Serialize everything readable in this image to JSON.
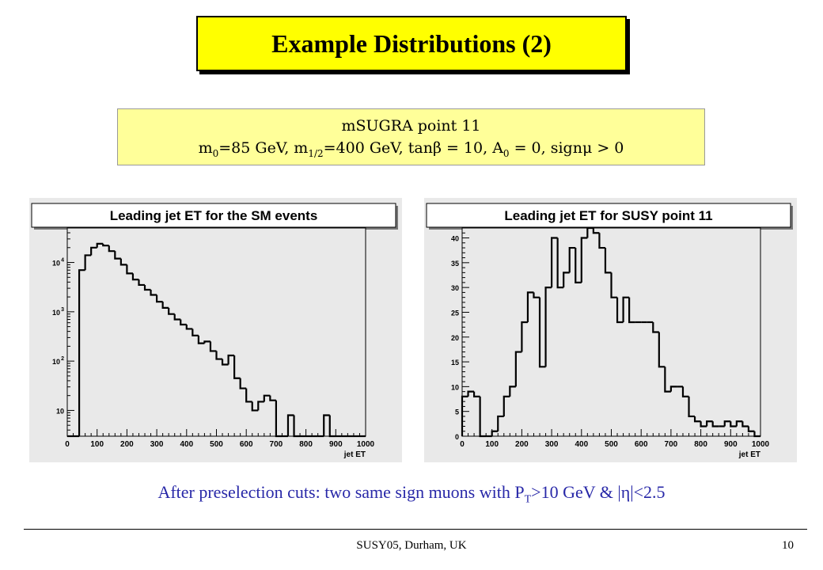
{
  "slide": {
    "title": "Example Distributions (2)",
    "param_line1": "mSUGRA point 11",
    "param_line2": {
      "m0": "m",
      "m0_sub": "0",
      "m0_val": "=85 GeV, m",
      "mhalf_sub": "1/2",
      "mhalf_val": "=400 GeV, tanβ = 10, A",
      "a0_sub": "0",
      "a0_val": " = 0, signμ > 0"
    },
    "caption": {
      "before": "After preselection cuts:  two same sign muons with P",
      "sub": "T",
      "after": ">10 GeV  & |η|<2.5"
    },
    "footer": "SUSY05, Durham, UK",
    "page_number": "10"
  },
  "chart_data": [
    {
      "type": "histogram",
      "title": "Leading jet ET for the SM events",
      "xlabel": "jet ET",
      "ylabel": "",
      "xlim": [
        0,
        1000
      ],
      "ylog": true,
      "ylim": [
        3,
        50000
      ],
      "xticks": [
        0,
        100,
        200,
        300,
        400,
        500,
        600,
        700,
        800,
        900,
        1000
      ],
      "xtick_labels": [
        "0",
        "100",
        "200",
        "300",
        "400",
        "500",
        "600",
        "700",
        "800",
        "900",
        "1000"
      ],
      "yticks": [
        10,
        100,
        1000,
        10000
      ],
      "ytick_labels": [
        {
          "base": "10",
          "exp": ""
        },
        {
          "base": "10",
          "exp": "2"
        },
        {
          "base": "10",
          "exp": "3"
        },
        {
          "base": "10",
          "exp": "4"
        }
      ],
      "bin_width": 20,
      "bins_x": [
        0,
        20,
        40,
        60,
        80,
        100,
        120,
        140,
        160,
        180,
        200,
        220,
        240,
        260,
        280,
        300,
        320,
        340,
        360,
        380,
        400,
        420,
        440,
        460,
        480,
        500,
        520,
        540,
        560,
        580,
        600,
        620,
        640,
        660,
        680,
        700,
        720,
        740,
        760,
        780,
        800,
        820,
        840,
        860,
        880,
        900,
        920,
        940,
        960,
        980
      ],
      "values": [
        3,
        3,
        7000,
        14000,
        20000,
        24000,
        22000,
        17000,
        12000,
        9000,
        6000,
        4500,
        3500,
        2800,
        2200,
        1600,
        1200,
        900,
        700,
        550,
        450,
        330,
        230,
        250,
        160,
        110,
        85,
        130,
        45,
        28,
        15,
        10,
        15,
        20,
        16,
        3,
        3,
        8,
        3,
        3,
        3,
        3,
        3,
        8,
        3,
        3,
        3,
        3,
        3,
        3
      ],
      "line_color": "#000000"
    },
    {
      "type": "histogram",
      "title": "Leading jet ET for SUSY point 11",
      "xlabel": "jet ET",
      "ylabel": "",
      "xlim": [
        0,
        1000
      ],
      "ylim": [
        0,
        42
      ],
      "xticks": [
        0,
        100,
        200,
        300,
        400,
        500,
        600,
        700,
        800,
        900,
        1000
      ],
      "xtick_labels": [
        "0",
        "100",
        "200",
        "300",
        "400",
        "500",
        "600",
        "700",
        "800",
        "900",
        "1000"
      ],
      "yticks": [
        0,
        5,
        10,
        15,
        20,
        25,
        30,
        35,
        40
      ],
      "ytick_labels": [
        "0",
        "5",
        "10",
        "15",
        "20",
        "25",
        "30",
        "35",
        "40"
      ],
      "bin_width": 20,
      "bins_x": [
        0,
        20,
        40,
        60,
        80,
        100,
        120,
        140,
        160,
        180,
        200,
        220,
        240,
        260,
        280,
        300,
        320,
        340,
        360,
        380,
        400,
        420,
        440,
        460,
        480,
        500,
        520,
        540,
        560,
        580,
        600,
        620,
        640,
        660,
        680,
        700,
        720,
        740,
        760,
        780,
        800,
        820,
        840,
        860,
        880,
        900,
        920,
        940,
        960,
        980
      ],
      "values": [
        8,
        9,
        8,
        0,
        0,
        1,
        4,
        8,
        10,
        17,
        23,
        29,
        28,
        14,
        30,
        40,
        30,
        33,
        38,
        31,
        40,
        42,
        41,
        38,
        33,
        28,
        23,
        28,
        23,
        23,
        23,
        23,
        21,
        14,
        9,
        10,
        10,
        8,
        4,
        3,
        2,
        3,
        2,
        2,
        3,
        2,
        3,
        2,
        1,
        0
      ],
      "line_color": "#000000"
    }
  ]
}
